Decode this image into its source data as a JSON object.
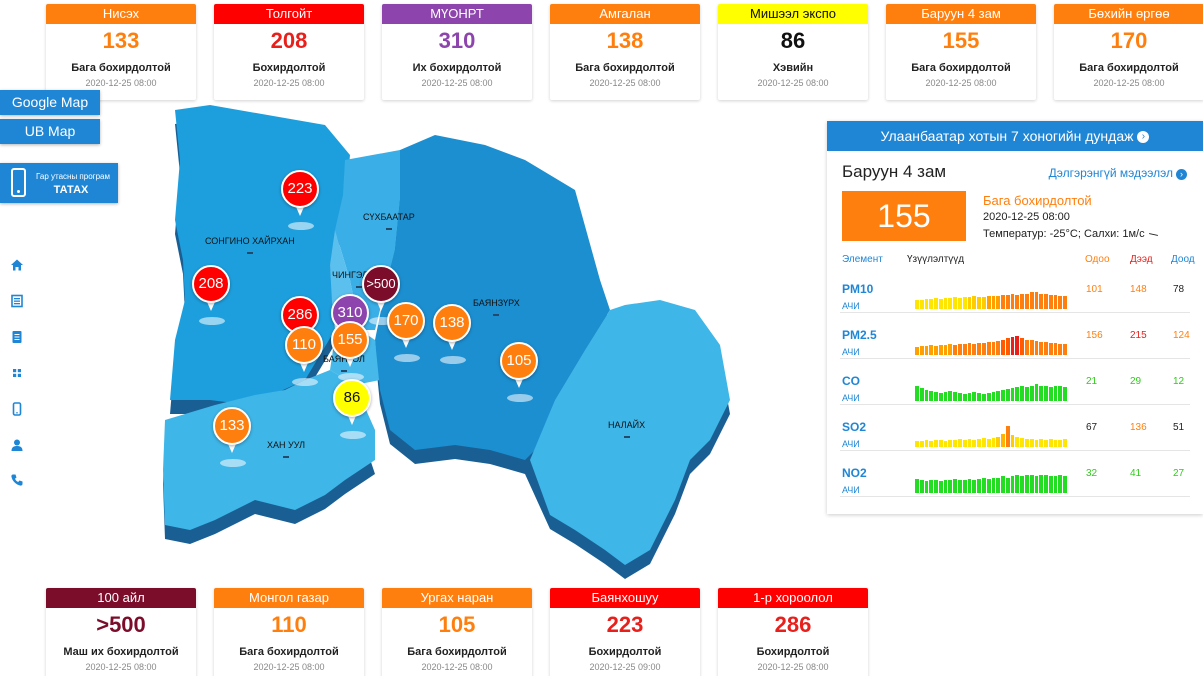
{
  "top_cards": [
    {
      "name": "Нисэх",
      "value": "133",
      "level": "Бага бохирдолтой",
      "time": "2020-12-25 08:00",
      "color": "#ff7f0e",
      "value_color": "#ff7f0e"
    },
    {
      "name": "Толгойт",
      "value": "208",
      "level": "Бохирдолтой",
      "time": "2020-12-25 08:00",
      "color": "#ff0000",
      "value_color": "#e8201c"
    },
    {
      "name": "МҮОНРТ",
      "value": "310",
      "level": "Их бохирдолтой",
      "time": "2020-12-25 08:00",
      "color": "#8e44ad",
      "value_color": "#8e44ad"
    },
    {
      "name": "Амгалан",
      "value": "138",
      "level": "Бага бохирдолтой",
      "time": "2020-12-25 08:00",
      "color": "#ff7f0e",
      "value_color": "#ff7f0e"
    },
    {
      "name": "Мишээл экспо",
      "value": "86",
      "level": "Хэвийн",
      "time": "2020-12-25 08:00",
      "color": "#ffff00",
      "value_color": "#111111",
      "dark": true
    },
    {
      "name": "Баруун 4 зам",
      "value": "155",
      "level": "Бага бохирдолтой",
      "time": "2020-12-25 08:00",
      "color": "#ff7f0e",
      "value_color": "#ff7f0e"
    },
    {
      "name": "Бөхийн өргөө",
      "value": "170",
      "level": "Бага бохирдолтой",
      "time": "2020-12-25 08:00",
      "color": "#ff7f0e",
      "value_color": "#ff7f0e"
    }
  ],
  "bottom_cards": [
    {
      "name": "100 айл",
      "value": ">500",
      "level": "Маш их бохирдолтой",
      "time": "2020-12-25 08:00",
      "color": "#7b0d2a",
      "value_color": "#7b0d2a"
    },
    {
      "name": "Монгол газар",
      "value": "110",
      "level": "Бага бохирдолтой",
      "time": "2020-12-25 08:00",
      "color": "#ff7f0e",
      "value_color": "#ff7f0e"
    },
    {
      "name": "Ургах наран",
      "value": "105",
      "level": "Бага бохирдолтой",
      "time": "2020-12-25 08:00",
      "color": "#ff7f0e",
      "value_color": "#ff7f0e"
    },
    {
      "name": "Баянхошуу",
      "value": "223",
      "level": "Бохирдолтой",
      "time": "2020-12-25 09:00",
      "color": "#ff0000",
      "value_color": "#e8201c"
    },
    {
      "name": "1-р хороолол",
      "value": "286",
      "level": "Бохирдолтой",
      "time": "2020-12-25 08:00",
      "color": "#ff0000",
      "value_color": "#e8201c"
    }
  ],
  "links": {
    "google_map": "Google Map",
    "ub_map": "UB Map"
  },
  "app_button": {
    "line1": "Гар утасны програм",
    "line2": "ТАТАХ",
    "icon": "phone-icon"
  },
  "side_icons": [
    "home-icon",
    "news-icon",
    "document-icon",
    "apps-icon",
    "mobile-icon",
    "user-icon",
    "phone-call-icon"
  ],
  "map": {
    "districts": [
      {
        "label": "СОНГИНО ХАЙРХАН"
      },
      {
        "label": "СҮХБААТАР"
      },
      {
        "label": "ЧИНГЭЛТЭЙ"
      },
      {
        "label": "БАЯНЗҮРХ"
      },
      {
        "label": "БАЯНГОЛ"
      },
      {
        "label": "ХАН УУЛ"
      },
      {
        "label": "НАЛАЙХ"
      }
    ],
    "pins": [
      {
        "value": "223",
        "color": "#ff0000"
      },
      {
        "value": "208",
        "color": "#ff0000"
      },
      {
        "value": ">500",
        "color": "#7b0d2a"
      },
      {
        "value": "286",
        "color": "#ff0000"
      },
      {
        "value": "310",
        "color": "#8e44ad"
      },
      {
        "value": "110",
        "color": "#ff7f0e"
      },
      {
        "value": "155",
        "color": "#ff7f0e"
      },
      {
        "value": "170",
        "color": "#ff7f0e"
      },
      {
        "value": "138",
        "color": "#ff7f0e"
      },
      {
        "value": "105",
        "color": "#ff7f0e"
      },
      {
        "value": "86",
        "color": "#ffff00",
        "text_color": "#111111"
      },
      {
        "value": "133",
        "color": "#ff7f0e"
      }
    ]
  },
  "panel": {
    "header": "Улаанбаатар хотын 7 хоногийн дундаж",
    "station": "Баруун 4 зам",
    "detail_link": "Дэлгэрэнгүй мэдээлэл",
    "aqi": "155",
    "level": "Бага бохирдолтой",
    "time": "2020-12-25 08:00",
    "weather": "Температур: -25°C; Салхи: 1м/с",
    "columns": {
      "element": "Элемент",
      "indicators": "Үзүүлэлтүүд",
      "current": "Одоо",
      "max": "Дээд",
      "min": "Доод"
    },
    "pollutants": [
      {
        "name": "PM10",
        "sub": "АЧИ",
        "now": "101",
        "max": "148",
        "min": "78",
        "now_color": "#ff7f0e",
        "max_color": "#ff7f0e",
        "min_color": "#222222",
        "bars": [
          0.4,
          0.4,
          0.45,
          0.45,
          0.5,
          0.45,
          0.5,
          0.5,
          0.55,
          0.5,
          0.55,
          0.55,
          0.6,
          0.55,
          0.55,
          0.6,
          0.6,
          0.6,
          0.65,
          0.65,
          0.7,
          0.65,
          0.7,
          0.7,
          0.75,
          0.75,
          0.7,
          0.7,
          0.65,
          0.65,
          0.6,
          0.6
        ],
        "bar_colors": [
          "#ffe600",
          "#ffe600",
          "#ffe600",
          "#ffe600",
          "#ffe600",
          "#ffe600",
          "#ffe600",
          "#ffe600",
          "#ffe600",
          "#ffe600",
          "#ffe600",
          "#ffcc00",
          "#ffcc00",
          "#ffcc00",
          "#ffcc00",
          "#ff9f00",
          "#ff9f00",
          "#ff9f00",
          "#ff7f0e",
          "#ff7f0e",
          "#ff7f0e",
          "#ff7f0e",
          "#ff7f0e",
          "#ff7f0e",
          "#ff7f0e",
          "#ff7f0e",
          "#ff7f0e",
          "#ff7f0e",
          "#ff7f0e",
          "#ff7f0e",
          "#ff7f0e",
          "#ff7f0e"
        ]
      },
      {
        "name": "PM2.5",
        "sub": "АЧИ",
        "now": "156",
        "max": "215",
        "min": "124",
        "now_color": "#ff7f0e",
        "max_color": "#e8201c",
        "min_color": "#ff7f0e",
        "bars": [
          0.35,
          0.4,
          0.4,
          0.45,
          0.4,
          0.45,
          0.45,
          0.5,
          0.45,
          0.5,
          0.5,
          0.55,
          0.5,
          0.55,
          0.55,
          0.6,
          0.6,
          0.65,
          0.7,
          0.75,
          0.8,
          0.85,
          0.75,
          0.7,
          0.7,
          0.65,
          0.6,
          0.6,
          0.55,
          0.55,
          0.5,
          0.5
        ],
        "bar_colors": [
          "#ff9f00",
          "#ff9f00",
          "#ff9f00",
          "#ff9f00",
          "#ff9f00",
          "#ff9f00",
          "#ff9f00",
          "#ff9f00",
          "#ff7f0e",
          "#ff7f0e",
          "#ff7f0e",
          "#ff7f0e",
          "#ff7f0e",
          "#ff7f0e",
          "#ff7f0e",
          "#ff7f0e",
          "#ff7f0e",
          "#ff7f0e",
          "#ff5a00",
          "#ff5a00",
          "#e8201c",
          "#e8201c",
          "#ff5a00",
          "#ff7f0e",
          "#ff7f0e",
          "#ff7f0e",
          "#ff7f0e",
          "#ff7f0e",
          "#ff7f0e",
          "#ff7f0e",
          "#ff7f0e",
          "#ff7f0e"
        ]
      },
      {
        "name": "CO",
        "sub": "АЧИ",
        "now": "21",
        "max": "29",
        "min": "12",
        "now_color": "#2ecc1a",
        "max_color": "#2ecc1a",
        "min_color": "#2ecc1a",
        "bars": [
          0.7,
          0.6,
          0.5,
          0.45,
          0.4,
          0.35,
          0.4,
          0.45,
          0.4,
          0.35,
          0.3,
          0.35,
          0.4,
          0.35,
          0.3,
          0.35,
          0.4,
          0.45,
          0.5,
          0.55,
          0.6,
          0.65,
          0.7,
          0.65,
          0.7,
          0.75,
          0.7,
          0.7,
          0.65,
          0.7,
          0.7,
          0.65
        ],
        "bar_colors": [
          "#22dd22"
        ]
      },
      {
        "name": "SO2",
        "sub": "АЧИ",
        "now": "67",
        "max": "136",
        "min": "51",
        "now_color": "#222222",
        "max_color": "#ff7f0e",
        "min_color": "#222222",
        "bars": [
          0.25,
          0.25,
          0.3,
          0.25,
          0.3,
          0.3,
          0.25,
          0.3,
          0.3,
          0.35,
          0.3,
          0.35,
          0.3,
          0.35,
          0.4,
          0.35,
          0.4,
          0.45,
          0.6,
          0.95,
          0.55,
          0.45,
          0.4,
          0.35,
          0.35,
          0.3,
          0.35,
          0.3,
          0.35,
          0.3,
          0.3,
          0.35
        ],
        "bar_colors": [
          "#ffe600",
          "#ffe600",
          "#ffe600",
          "#ffe600",
          "#ffe600",
          "#ffe600",
          "#ffe600",
          "#ffe600",
          "#ffe600",
          "#ffe600",
          "#ffe600",
          "#ffe600",
          "#ffe600",
          "#ffe600",
          "#ffe600",
          "#ffe600",
          "#ffe600",
          "#ffcc00",
          "#ffb300",
          "#ff7f0e",
          "#ffcc00",
          "#ffe600",
          "#ffe600",
          "#ffe600",
          "#ffe600",
          "#ffe600",
          "#ffe600",
          "#ffe600",
          "#ffe600",
          "#ffe600",
          "#ffe600",
          "#ffe600"
        ]
      },
      {
        "name": "NO2",
        "sub": "АЧИ",
        "now": "32",
        "max": "41",
        "min": "27",
        "now_color": "#2ecc1a",
        "max_color": "#2ecc1a",
        "min_color": "#2ecc1a",
        "bars": [
          0.65,
          0.6,
          0.55,
          0.6,
          0.6,
          0.55,
          0.6,
          0.6,
          0.65,
          0.6,
          0.6,
          0.65,
          0.6,
          0.65,
          0.7,
          0.65,
          0.7,
          0.7,
          0.75,
          0.7,
          0.75,
          0.8,
          0.75,
          0.8,
          0.8,
          0.75,
          0.8,
          0.8,
          0.75,
          0.75,
          0.8,
          0.75
        ],
        "bar_colors": [
          "#22dd22"
        ]
      }
    ]
  }
}
